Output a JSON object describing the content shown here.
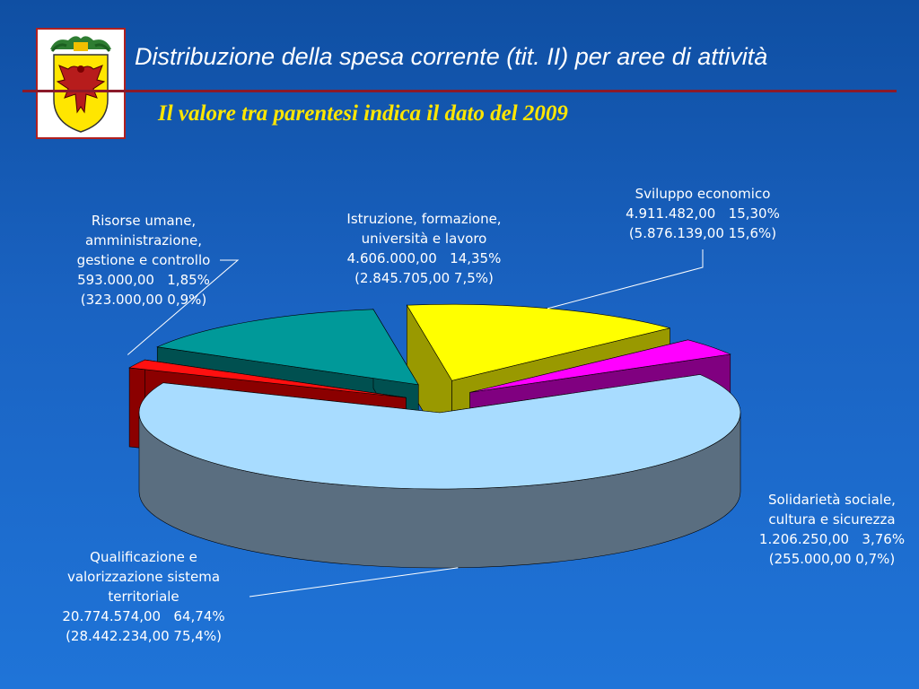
{
  "header": {
    "title": "Distribuzione della spesa corrente (tit. II) per aree di attività",
    "subtitle": "Il valore tra parentesi indica il dato del 2009"
  },
  "colors": {
    "background": "#1a63c2",
    "rule": "#8b1a2a",
    "subtitle": "#ffe600"
  },
  "chart_data": {
    "type": "pie",
    "title": "Distribuzione della spesa corrente (tit. II) per aree di attività",
    "series": [
      {
        "name": "Qualificazione e valorizzazione sistema territoriale",
        "label_lines": [
          "Qualificazione e",
          "valorizzazione sistema",
          "territoriale"
        ],
        "value": 20774574.0,
        "value_text": "20.774.574,00",
        "percent": 64.74,
        "percent_text": "64,74%",
        "prev_value": 28442234.0,
        "prev_text": "(28.442.234,00   75,4%)",
        "top_color": "#a8dcff",
        "side_color": "#5a6e80"
      },
      {
        "name": "Risorse umane, amministrazione, gestione e controllo",
        "label_lines": [
          "Risorse umane,",
          "amministrazione,",
          "gestione e controllo"
        ],
        "value": 593000.0,
        "value_text": "593.000,00",
        "percent": 1.85,
        "percent_text": "1,85%",
        "prev_value": 323000.0,
        "prev_text": "(323.000,00    0,9%)",
        "top_color": "#ff1010",
        "side_color": "#8b0000"
      },
      {
        "name": "Istruzione, formazione, università e lavoro",
        "label_lines": [
          "Istruzione, formazione,",
          "università e lavoro"
        ],
        "value": 4606000.0,
        "value_text": "4.606.000,00",
        "percent": 14.35,
        "percent_text": "14,35%",
        "prev_value": 2845705.0,
        "prev_text": "(2.845.705,00   7,5%)",
        "top_color": "#009999",
        "side_color": "#005050"
      },
      {
        "name": "Sviluppo economico",
        "label_lines": [
          "Sviluppo economico"
        ],
        "value": 4911482.0,
        "value_text": "4.911.482,00",
        "percent": 15.3,
        "percent_text": "15,30%",
        "prev_value": 5876139.0,
        "prev_text": "(5.876.139,00    15,6%)",
        "top_color": "#ffff00",
        "side_color": "#999900"
      },
      {
        "name": "Solidarietà sociale, cultura e sicurezza",
        "label_lines": [
          "Solidarietà sociale,",
          "cultura e sicurezza"
        ],
        "value": 1206250.0,
        "value_text": "1.206.250,00",
        "percent": 3.76,
        "percent_text": "3,76%",
        "prev_value": 255000.0,
        "prev_text": "(255.000,00   0,7%)",
        "top_color": "#ff00ff",
        "side_color": "#800080"
      }
    ]
  }
}
